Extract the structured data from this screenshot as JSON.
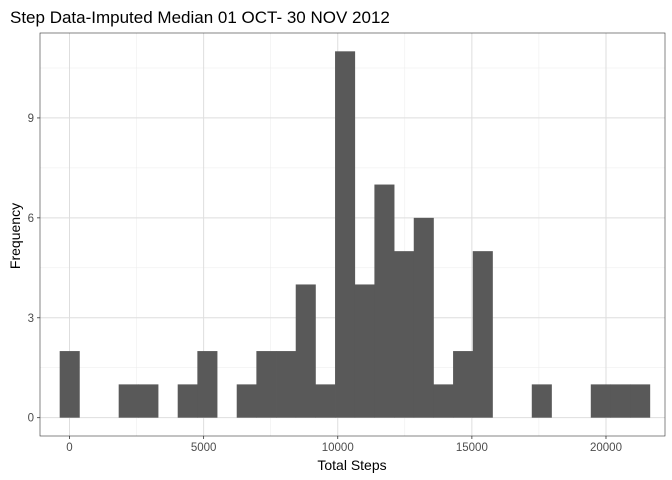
{
  "chart_data": {
    "type": "bar",
    "title": "Step Data-Imputed Median 01 OCT- 30 NOV 2012",
    "xlabel": "Total Steps",
    "ylabel": "Frequency",
    "xlim": [
      -1100,
      22200
    ],
    "ylim": [
      -0.55,
      11.55
    ],
    "x_ticks": [
      0,
      5000,
      10000,
      15000,
      20000
    ],
    "x_tick_labels": [
      "0",
      "5000",
      "10000",
      "15000",
      "20000"
    ],
    "y_ticks": [
      0,
      3,
      6,
      9
    ],
    "y_tick_labels": [
      "0",
      "3",
      "6",
      "9"
    ],
    "grid": true,
    "bar_color": "#595959",
    "bins": [
      {
        "x": 0,
        "count": 2
      },
      {
        "x": 733,
        "count": 0
      },
      {
        "x": 1466,
        "count": 0
      },
      {
        "x": 2200,
        "count": 1
      },
      {
        "x": 2933,
        "count": 1
      },
      {
        "x": 3666,
        "count": 0
      },
      {
        "x": 4400,
        "count": 1
      },
      {
        "x": 5133,
        "count": 2
      },
      {
        "x": 5866,
        "count": 0
      },
      {
        "x": 6600,
        "count": 1
      },
      {
        "x": 7333,
        "count": 2
      },
      {
        "x": 8066,
        "count": 2
      },
      {
        "x": 8800,
        "count": 4
      },
      {
        "x": 9533,
        "count": 1
      },
      {
        "x": 10266,
        "count": 11
      },
      {
        "x": 11000,
        "count": 4
      },
      {
        "x": 11733,
        "count": 7
      },
      {
        "x": 12466,
        "count": 5
      },
      {
        "x": 13200,
        "count": 6
      },
      {
        "x": 13933,
        "count": 1
      },
      {
        "x": 14666,
        "count": 2
      },
      {
        "x": 15400,
        "count": 5
      },
      {
        "x": 16133,
        "count": 0
      },
      {
        "x": 16866,
        "count": 0
      },
      {
        "x": 17600,
        "count": 1
      },
      {
        "x": 18333,
        "count": 0
      },
      {
        "x": 19066,
        "count": 0
      },
      {
        "x": 19800,
        "count": 1
      },
      {
        "x": 20533,
        "count": 1
      },
      {
        "x": 21266,
        "count": 1
      }
    ],
    "bin_width": 733
  }
}
